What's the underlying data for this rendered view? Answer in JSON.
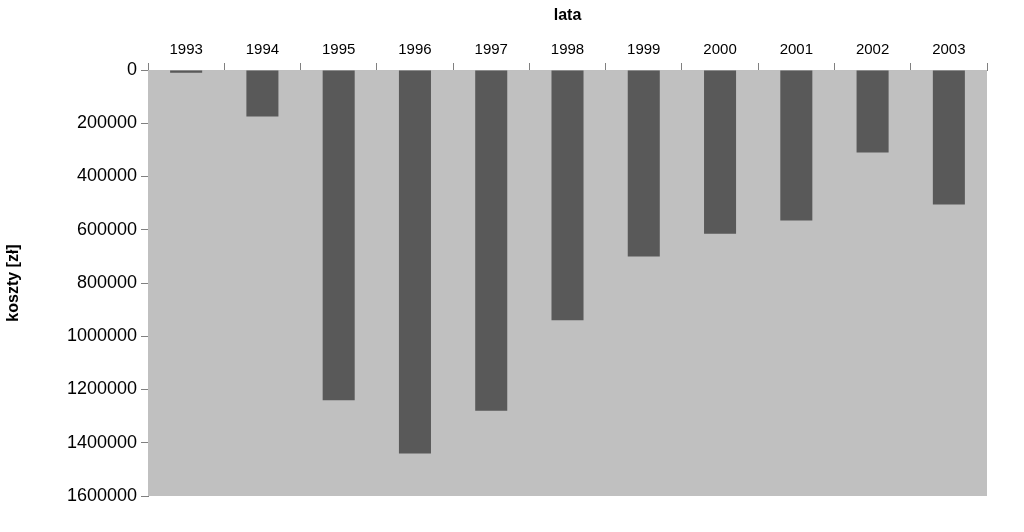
{
  "chart_data": {
    "type": "bar",
    "xlabel": "lata",
    "ylabel": "koszty [zł]",
    "categories": [
      "1993",
      "1994",
      "1995",
      "1996",
      "1997",
      "1998",
      "1999",
      "2000",
      "2001",
      "2002",
      "2003"
    ],
    "values": [
      10000,
      175000,
      1240000,
      1440000,
      1280000,
      940000,
      700000,
      615000,
      565000,
      310000,
      505000
    ],
    "color": "#595959",
    "ylim": [
      1600000,
      0
    ],
    "yticks": [
      0,
      200000,
      400000,
      600000,
      800000,
      1000000,
      1200000,
      1400000,
      1600000
    ],
    "grid": false
  }
}
